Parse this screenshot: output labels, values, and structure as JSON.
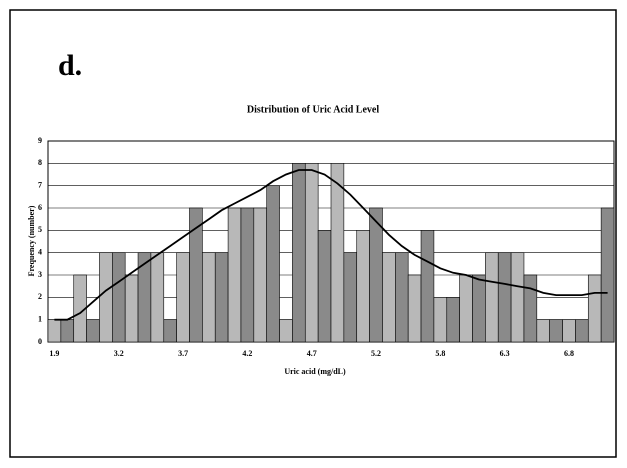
{
  "panel_label": "d.",
  "chart_data": {
    "type": "bar",
    "title": "Distribution of Uric Acid Level",
    "x_label": "Uric acid (mg/dL)",
    "y_label": "Frequency (number)",
    "categories": [
      "1.9",
      null,
      null,
      null,
      null,
      "3.2",
      null,
      null,
      null,
      null,
      "3.7",
      null,
      null,
      null,
      null,
      "4.2",
      null,
      null,
      null,
      null,
      "4.7",
      null,
      null,
      null,
      null,
      "5.2",
      null,
      null,
      null,
      null,
      "5.8",
      null,
      null,
      null,
      null,
      "6.3",
      null,
      null,
      null,
      null,
      "6.8",
      null,
      null,
      null
    ],
    "values": [
      1,
      1,
      3,
      1,
      4,
      4,
      3,
      4,
      4,
      1,
      4,
      6,
      4,
      4,
      6,
      6,
      6,
      7,
      1,
      8,
      8,
      5,
      8,
      4,
      5,
      6,
      4,
      4,
      3,
      5,
      2,
      2,
      3,
      3,
      4,
      4,
      4,
      3,
      1,
      1,
      1,
      1,
      3,
      6
    ],
    "curve": [
      1.0,
      1.0,
      1.3,
      1.8,
      2.3,
      2.7,
      3.1,
      3.5,
      3.9,
      4.3,
      4.7,
      5.1,
      5.5,
      5.9,
      6.2,
      6.5,
      6.8,
      7.2,
      7.5,
      7.7,
      7.7,
      7.5,
      7.1,
      6.6,
      6.0,
      5.4,
      4.8,
      4.3,
      3.9,
      3.6,
      3.3,
      3.1,
      3.0,
      2.8,
      2.7,
      2.6,
      2.5,
      2.4,
      2.2,
      2.1,
      2.1,
      2.1,
      2.2,
      2.2
    ],
    "colors": [
      "#b8b8b8",
      "#8a8a8a"
    ],
    "curve_color": "#000000",
    "ylim": [
      0,
      9
    ],
    "yticks": [
      0,
      1,
      2,
      3,
      4,
      5,
      6,
      7,
      8,
      9
    ],
    "grid": true
  }
}
